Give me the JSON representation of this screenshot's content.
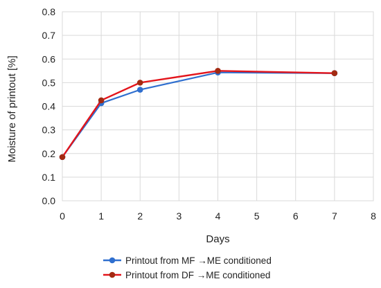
{
  "chart_data": {
    "type": "line",
    "title": "",
    "xlabel": "Days",
    "ylabel": "Moisture of printout [%]",
    "xlim": [
      0,
      8
    ],
    "ylim": [
      0,
      0.8
    ],
    "x_ticks": [
      "0",
      "1",
      "2",
      "3",
      "4",
      "5",
      "6",
      "7",
      "8"
    ],
    "y_ticks": [
      "0.0",
      "0.1",
      "0.2",
      "0.3",
      "0.4",
      "0.5",
      "0.6",
      "0.7",
      "0.8"
    ],
    "grid": true,
    "legend_position": "bottom",
    "series": [
      {
        "name": "Printout from MF →ME conditioned",
        "color": "#2f6fcf",
        "x": [
          0,
          1,
          2,
          4,
          7
        ],
        "y": [
          0.185,
          0.413,
          0.47,
          0.543,
          0.54
        ]
      },
      {
        "name": "Printout from DF →ME conditioned",
        "color": "#e3141b",
        "marker_color": "#a32a12",
        "x": [
          0,
          1,
          2,
          4,
          7
        ],
        "y": [
          0.185,
          0.425,
          0.5,
          0.55,
          0.54
        ]
      }
    ]
  }
}
